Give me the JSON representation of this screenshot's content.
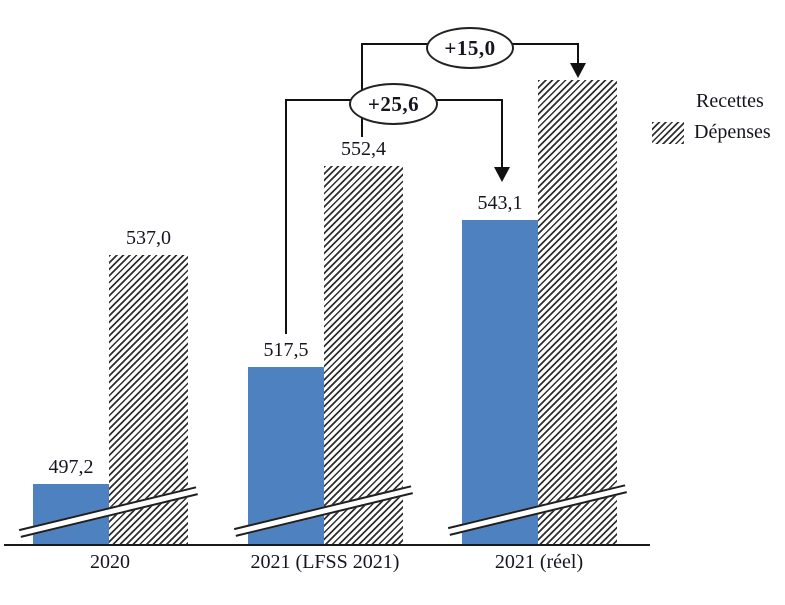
{
  "chart_data": {
    "type": "bar",
    "categories": [
      "2020",
      "2021 (LFSS 2021)",
      "2021 (réel)"
    ],
    "series": [
      {
        "name": "Recettes",
        "values": [
          497.2,
          517.5,
          543.1
        ],
        "value_labels": [
          "497,2",
          "517,5",
          "543,1"
        ],
        "color": "#4e81bf",
        "style": "solid"
      },
      {
        "name": "Dépenses",
        "values": [
          537.0,
          552.4,
          567.4
        ],
        "value_labels": [
          "537,0",
          "552,4",
          ""
        ],
        "color": "#2f2f2f",
        "style": "diagonal-hatch"
      }
    ],
    "annotations": [
      {
        "label": "+15,0",
        "series": "Dépenses",
        "from_category": "2021 (LFSS 2021)",
        "to_category": "2021 (réel)"
      },
      {
        "label": "+25,6",
        "series": "Recettes",
        "from_category": "2021 (LFSS 2021)",
        "to_category": "2021 (réel)"
      }
    ],
    "axis_break": true,
    "baseline_value": 486.6,
    "legend_position": "right",
    "grid": false
  },
  "colors": {
    "recettes_blue": "#4e81bf",
    "hatch_line": "#2f2f2f",
    "axis": "#1a1a1a",
    "text": "#15151f",
    "annotation_line": "#111111"
  }
}
